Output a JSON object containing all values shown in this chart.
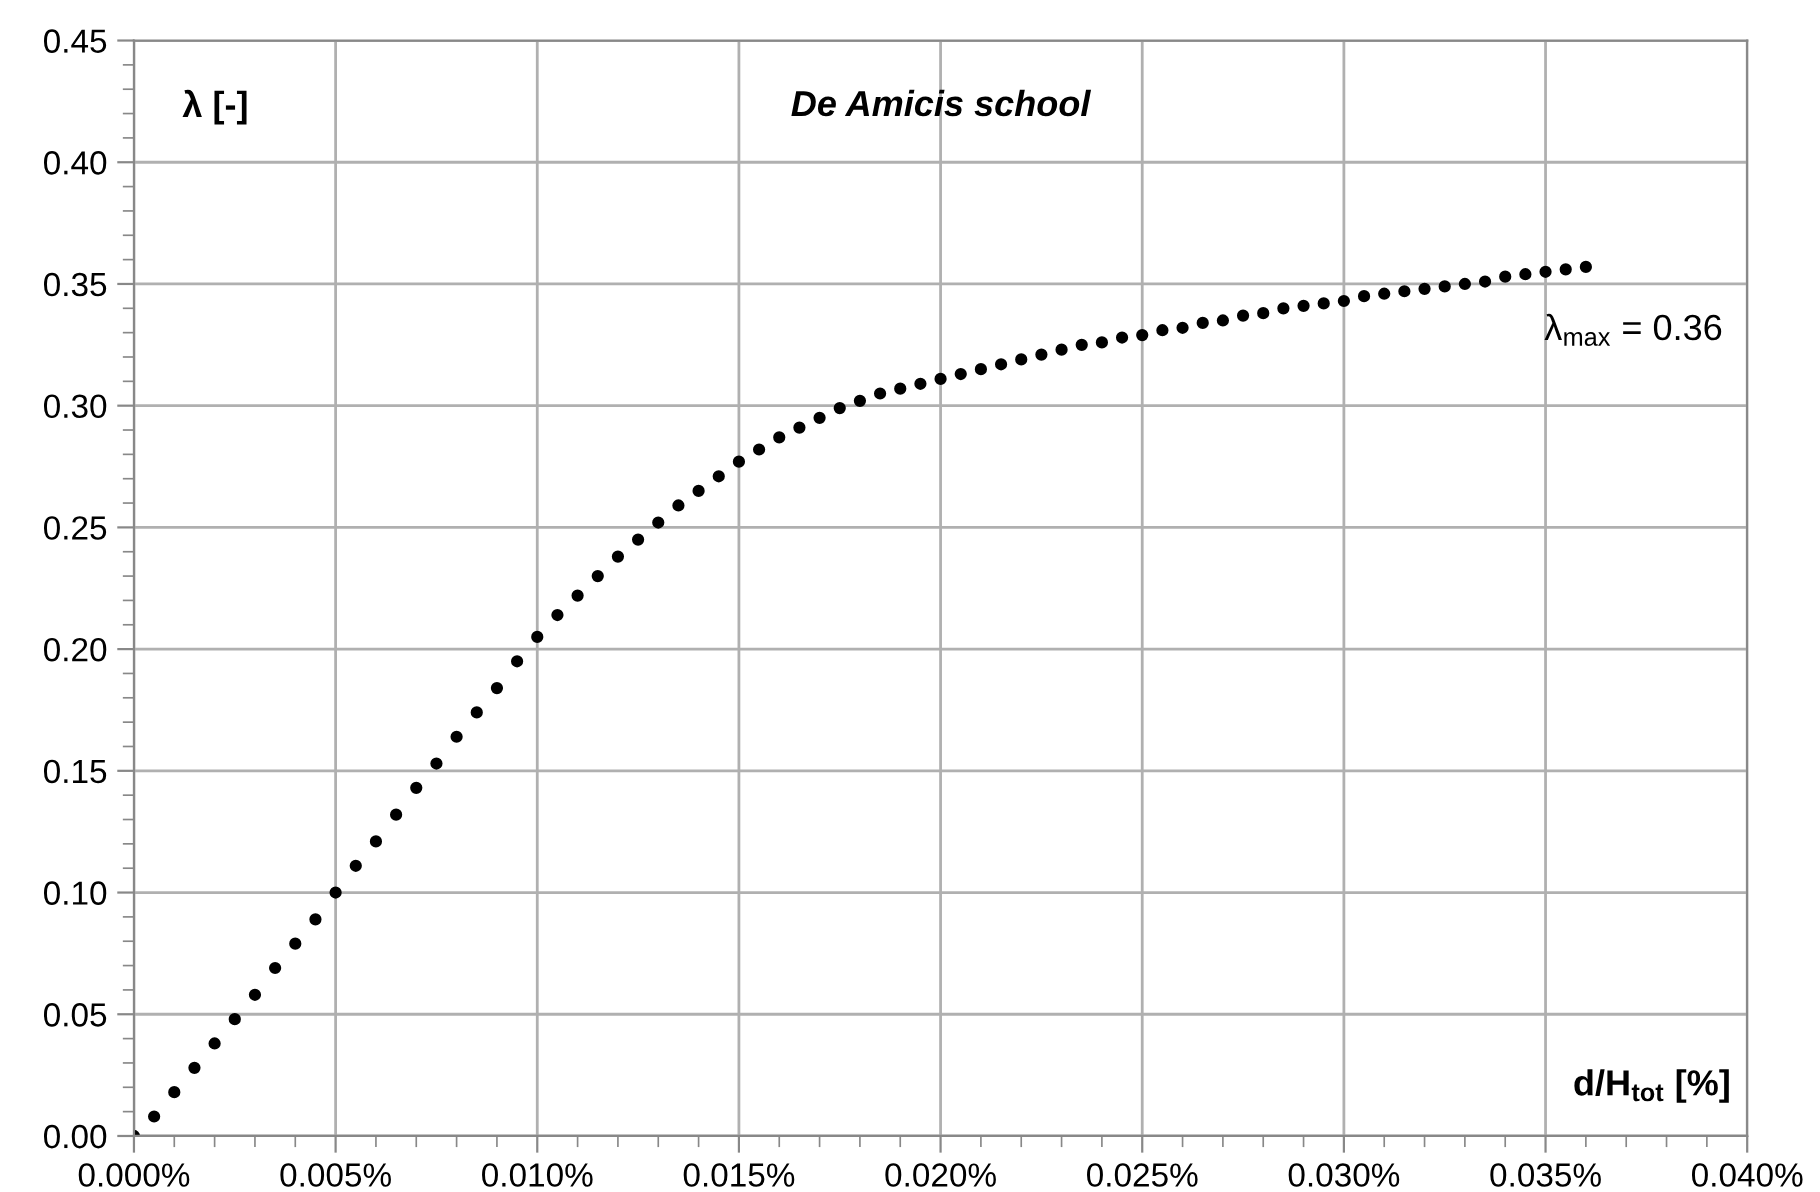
{
  "chart_data": {
    "type": "scatter",
    "title": "De Amicis school",
    "xlabel": "d/H$_{tot}$ [%]",
    "ylabel": "λ [-]",
    "annotations": [
      "λ$_{max}$ = 0.36"
    ],
    "series": [
      {
        "color": "#000000",
        "x": [
          0,
          0.0005,
          0.001,
          0.0015,
          0.002,
          0.0025,
          0.003,
          0.0035,
          0.004,
          0.0045,
          0.005,
          0.0055,
          0.006,
          0.0065,
          0.007,
          0.0075,
          0.008,
          0.0085,
          0.009,
          0.0095,
          0.01,
          0.0105,
          0.011,
          0.0115,
          0.012,
          0.0125,
          0.013,
          0.0135,
          0.014,
          0.0145,
          0.015,
          0.0155,
          0.016,
          0.0165,
          0.017,
          0.0175,
          0.018,
          0.0185,
          0.019,
          0.0195,
          0.02,
          0.0205,
          0.021,
          0.0215,
          0.022,
          0.0225,
          0.023,
          0.0235,
          0.024,
          0.0245,
          0.025,
          0.0255,
          0.026,
          0.0265,
          0.027,
          0.0275,
          0.028,
          0.0285,
          0.029,
          0.0295,
          0.03,
          0.0305,
          0.031,
          0.0315,
          0.032,
          0.0325,
          0.033,
          0.0335,
          0.034,
          0.0345,
          0.035,
          0.0355,
          0.036
        ],
        "values": [
          0,
          0.008,
          0.018,
          0.028,
          0.038,
          0.048,
          0.058,
          0.069,
          0.079,
          0.089,
          0.1,
          0.111,
          0.121,
          0.132,
          0.143,
          0.153,
          0.164,
          0.174,
          0.184,
          0.195,
          0.205,
          0.214,
          0.222,
          0.23,
          0.238,
          0.245,
          0.252,
          0.259,
          0.265,
          0.271,
          0.277,
          0.282,
          0.287,
          0.291,
          0.295,
          0.299,
          0.302,
          0.305,
          0.307,
          0.309,
          0.311,
          0.313,
          0.315,
          0.317,
          0.319,
          0.321,
          0.323,
          0.325,
          0.326,
          0.328,
          0.329,
          0.331,
          0.332,
          0.334,
          0.335,
          0.337,
          0.338,
          0.34,
          0.341,
          0.342,
          0.343,
          0.345,
          0.346,
          0.347,
          0.348,
          0.349,
          0.35,
          0.351,
          0.353,
          0.354,
          0.355,
          0.356,
          0.357
        ]
      }
    ],
    "xlim": [
      0,
      0.04
    ],
    "xticks": [
      {
        "value": 0,
        "label": "0.000%"
      },
      {
        "value": 0.005,
        "label": "0.005%"
      },
      {
        "value": 0.01,
        "label": "0.010%"
      },
      {
        "value": 0.015,
        "label": "0.015%"
      },
      {
        "value": 0.02,
        "label": "0.020%"
      },
      {
        "value": 0.025,
        "label": "0.025%"
      },
      {
        "value": 0.03,
        "label": "0.030%"
      },
      {
        "value": 0.035,
        "label": "0.035%"
      },
      {
        "value": 0.04,
        "label": "0.040%"
      }
    ],
    "ylim": [
      0,
      0.45
    ],
    "yticks": [
      {
        "value": 0,
        "label": "0.00"
      },
      {
        "value": 0.05,
        "label": "0.05"
      },
      {
        "value": 0.1,
        "label": "0.10"
      },
      {
        "value": 0.15,
        "label": "0.15"
      },
      {
        "value": 0.2,
        "label": "0.20"
      },
      {
        "value": 0.25,
        "label": "0.25"
      },
      {
        "value": 0.3,
        "label": "0.30"
      },
      {
        "value": 0.35,
        "label": "0.35"
      },
      {
        "value": 0.4,
        "label": "0.40"
      },
      {
        "value": 0.45,
        "label": "0.45"
      }
    ],
    "grid": true,
    "marker": "circle",
    "legend": false
  }
}
